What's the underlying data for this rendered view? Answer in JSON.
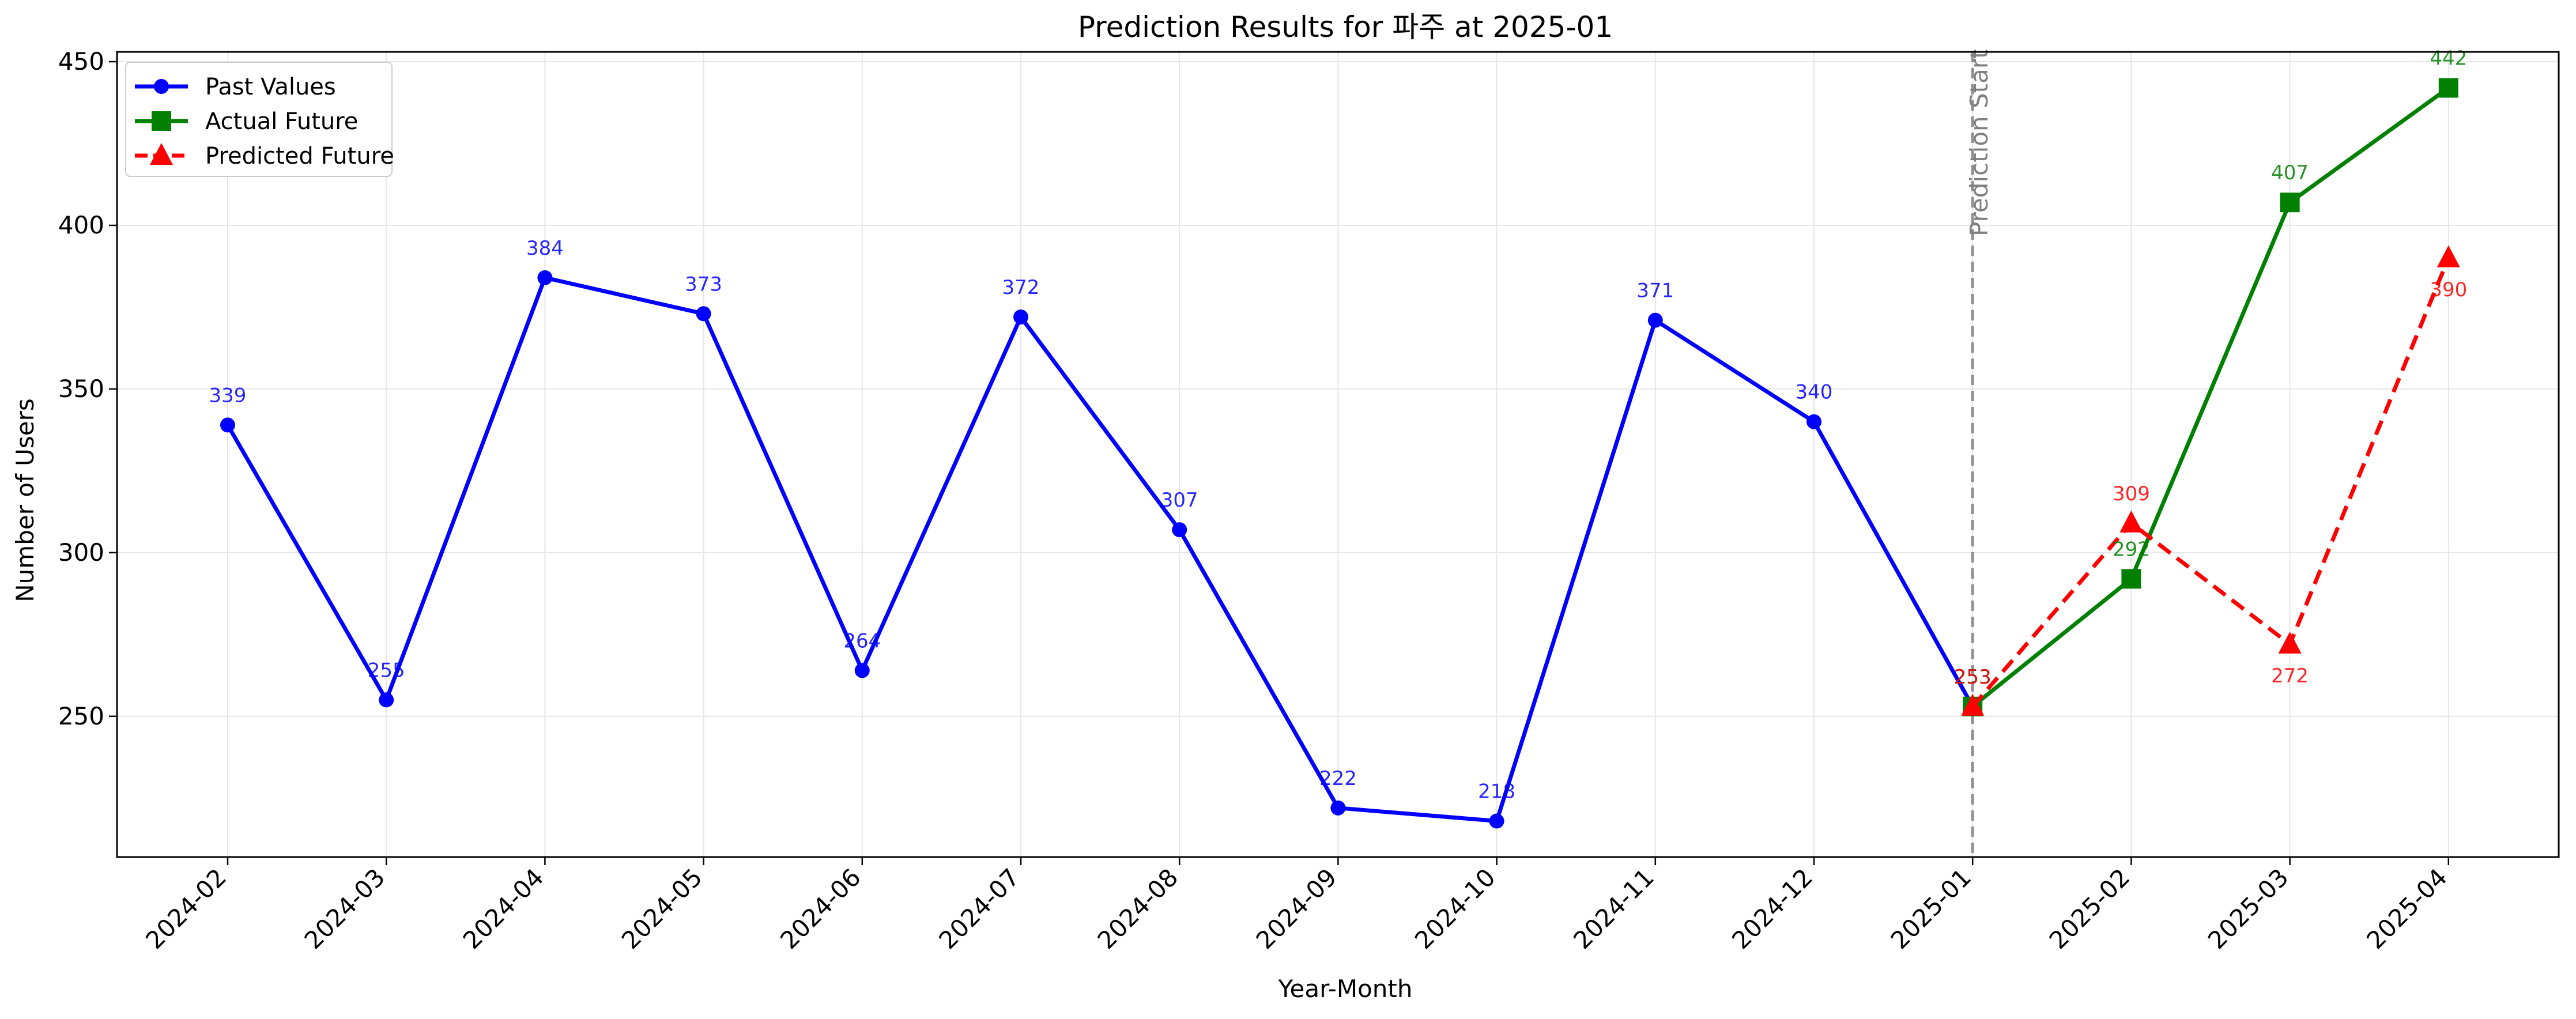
{
  "chart_data": {
    "type": "line",
    "title": "Prediction Results for 파주 at 2025-01",
    "xlabel": "Year-Month",
    "ylabel": "Number of Users",
    "categories": [
      "2024-02",
      "2024-03",
      "2024-04",
      "2024-05",
      "2024-06",
      "2024-07",
      "2024-08",
      "2024-09",
      "2024-10",
      "2024-11",
      "2024-12",
      "2025-01",
      "2025-02",
      "2025-03",
      "2025-04"
    ],
    "ylim": [
      207,
      453
    ],
    "yticks": [
      250,
      300,
      350,
      400,
      450
    ],
    "grid": true,
    "legend_position": "top-left",
    "series": [
      {
        "name": "Past Values",
        "color": "#0000ff",
        "marker": "circle",
        "dash": false,
        "x": [
          "2024-02",
          "2024-03",
          "2024-04",
          "2024-05",
          "2024-06",
          "2024-07",
          "2024-08",
          "2024-09",
          "2024-10",
          "2024-11",
          "2024-12",
          "2025-01"
        ],
        "values": [
          339,
          255,
          384,
          373,
          264,
          372,
          307,
          222,
          218,
          371,
          340,
          253
        ]
      },
      {
        "name": "Actual Future",
        "color": "#008000",
        "marker": "square",
        "dash": false,
        "x": [
          "2025-01",
          "2025-02",
          "2025-03",
          "2025-04"
        ],
        "values": [
          253,
          292,
          407,
          442
        ]
      },
      {
        "name": "Predicted Future",
        "color": "#ff0000",
        "marker": "triangle",
        "dash": true,
        "x": [
          "2025-01",
          "2025-02",
          "2025-03",
          "2025-04"
        ],
        "values": [
          253,
          309,
          272,
          390
        ]
      }
    ],
    "vline": {
      "x": "2025-01",
      "label": "Prediction Start",
      "color": "#808080"
    }
  }
}
